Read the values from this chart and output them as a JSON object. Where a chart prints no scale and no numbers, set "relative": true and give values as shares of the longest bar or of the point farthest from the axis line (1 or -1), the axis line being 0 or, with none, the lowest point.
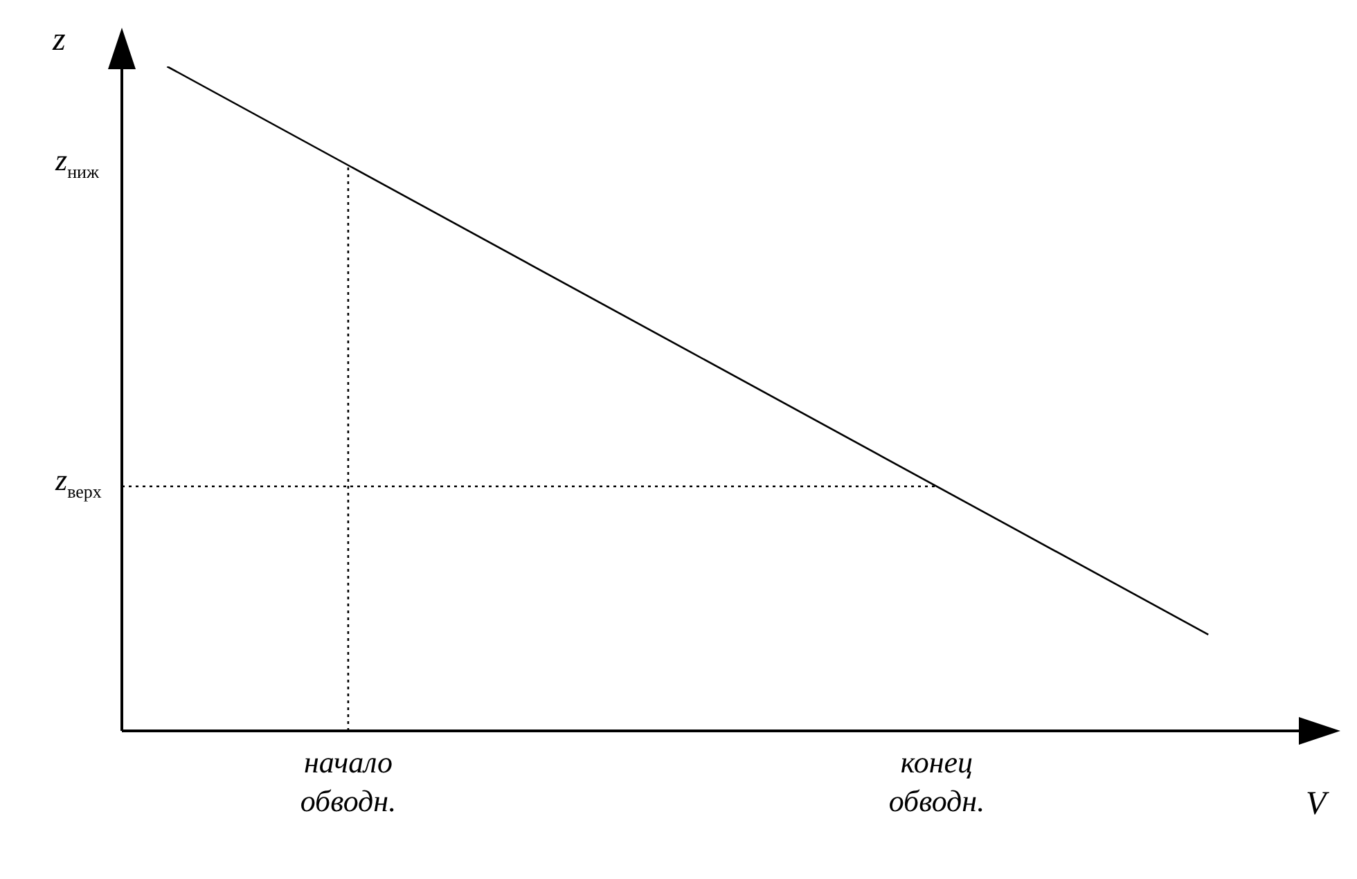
{
  "chart_data": {
    "type": "line",
    "xlabel": "V",
    "ylabel": "z",
    "relative": true,
    "categories": [
      null,
      null,
      null,
      null,
      null,
      "начало обводн.",
      null,
      null,
      null,
      null,
      null,
      null,
      null,
      null,
      null,
      null,
      null,
      null,
      "конец обводн.",
      null,
      null,
      null,
      null,
      null,
      null,
      null,
      null
    ],
    "annotations": [
      "z$_{ниж}$",
      "z$_{верх}$"
    ],
    "grid": false,
    "marker": "none",
    "series": [
      {
        "color": "#000000",
        "line_style": "solid",
        "values": [
          null,
          1,
          null,
          null,
          null,
          null,
          null,
          null,
          null,
          null,
          null,
          null,
          null,
          null,
          null,
          null,
          null,
          null,
          null,
          null,
          null,
          null,
          null,
          null,
          0.145,
          null,
          null
        ]
      },
      {
        "color": "#000000",
        "line_style": "dotted",
        "x": [
          "начало обводн.",
          "начало обводн."
        ],
        "values": [
          0,
          0.851
        ]
      },
      {
        "color": "#000000",
        "line_style": "dotted",
        "values": [
          0.368,
          null,
          null,
          null,
          null,
          null,
          null,
          null,
          null,
          null,
          null,
          null,
          null,
          null,
          null,
          null,
          null,
          null,
          0.368,
          null,
          null,
          null,
          null,
          null,
          null,
          null,
          null
        ]
      }
    ]
  }
}
